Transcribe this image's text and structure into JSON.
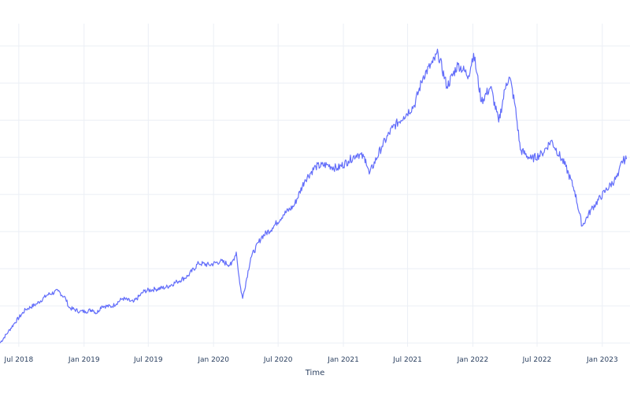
{
  "chart_data": {
    "type": "line",
    "title": "",
    "xlabel": "Time",
    "ylabel": "",
    "x_tick_labels": [
      "Jul 2018",
      "Jan 2019",
      "Jul 2019",
      "Jan 2020",
      "Jul 2020",
      "Jan 2021",
      "Jul 2021",
      "Jan 2022",
      "Jul 2022",
      "Jan 2023"
    ],
    "x_tick_dates": [
      "2018-07-01",
      "2019-01-01",
      "2019-07-01",
      "2020-01-01",
      "2020-07-01",
      "2021-01-01",
      "2021-07-01",
      "2022-01-01",
      "2022-07-01",
      "2023-01-01"
    ],
    "xlim": [
      "2018-05-09",
      "2023-03-20"
    ],
    "ylim": [
      -0.1,
      8.6
    ],
    "grid": true,
    "series": [
      {
        "color": "#636efa",
        "points": [
          [
            "2018-05-09",
            0.0
          ],
          [
            "2018-06-01",
            0.3
          ],
          [
            "2018-06-20",
            0.55
          ],
          [
            "2018-07-20",
            0.9
          ],
          [
            "2018-08-20",
            1.05
          ],
          [
            "2018-09-20",
            1.3
          ],
          [
            "2018-10-20",
            1.4
          ],
          [
            "2018-11-10",
            1.2
          ],
          [
            "2018-11-20",
            0.95
          ],
          [
            "2018-12-20",
            0.85
          ],
          [
            "2019-01-05",
            0.85
          ],
          [
            "2019-01-25",
            0.9
          ],
          [
            "2019-02-05",
            0.8
          ],
          [
            "2019-02-20",
            1.0
          ],
          [
            "2019-03-20",
            0.98
          ],
          [
            "2019-04-20",
            1.2
          ],
          [
            "2019-05-20",
            1.1
          ],
          [
            "2019-06-20",
            1.4
          ],
          [
            "2019-07-20",
            1.45
          ],
          [
            "2019-08-20",
            1.5
          ],
          [
            "2019-09-20",
            1.65
          ],
          [
            "2019-10-20",
            1.8
          ],
          [
            "2019-11-20",
            2.15
          ],
          [
            "2019-12-20",
            2.1
          ],
          [
            "2020-01-20",
            2.2
          ],
          [
            "2020-02-20",
            2.1
          ],
          [
            "2020-03-05",
            2.45
          ],
          [
            "2020-03-15",
            1.6
          ],
          [
            "2020-03-23",
            1.2
          ],
          [
            "2020-04-15",
            2.3
          ],
          [
            "2020-05-15",
            2.85
          ],
          [
            "2020-06-15",
            3.1
          ],
          [
            "2020-07-15",
            3.45
          ],
          [
            "2020-08-15",
            3.7
          ],
          [
            "2020-09-15",
            4.4
          ],
          [
            "2020-10-15",
            4.75
          ],
          [
            "2020-11-15",
            4.8
          ],
          [
            "2020-12-15",
            4.7
          ],
          [
            "2021-01-15",
            4.9
          ],
          [
            "2021-02-10",
            5.1
          ],
          [
            "2021-03-05",
            4.95
          ],
          [
            "2021-03-15",
            4.55
          ],
          [
            "2021-04-20",
            5.3
          ],
          [
            "2021-05-20",
            5.8
          ],
          [
            "2021-06-20",
            6.1
          ],
          [
            "2021-07-20",
            6.4
          ],
          [
            "2021-08-15",
            7.2
          ],
          [
            "2021-09-10",
            7.55
          ],
          [
            "2021-09-25",
            7.8
          ],
          [
            "2021-10-20",
            6.9
          ],
          [
            "2021-11-20",
            7.5
          ],
          [
            "2021-12-20",
            7.2
          ],
          [
            "2022-01-03",
            7.8
          ],
          [
            "2022-01-25",
            6.5
          ],
          [
            "2022-02-20",
            6.9
          ],
          [
            "2022-03-15",
            5.95
          ],
          [
            "2022-04-05",
            7.0
          ],
          [
            "2022-04-15",
            7.15
          ],
          [
            "2022-04-30",
            6.4
          ],
          [
            "2022-05-15",
            5.2
          ],
          [
            "2022-06-15",
            4.95
          ],
          [
            "2022-07-15",
            5.1
          ],
          [
            "2022-08-10",
            5.45
          ],
          [
            "2022-09-20",
            4.75
          ],
          [
            "2022-10-15",
            4.1
          ],
          [
            "2022-11-05",
            3.15
          ],
          [
            "2022-12-01",
            3.6
          ],
          [
            "2023-01-10",
            4.1
          ],
          [
            "2023-02-15",
            4.5
          ],
          [
            "2023-02-25",
            4.9
          ],
          [
            "2023-03-10",
            4.95
          ]
        ]
      }
    ]
  }
}
